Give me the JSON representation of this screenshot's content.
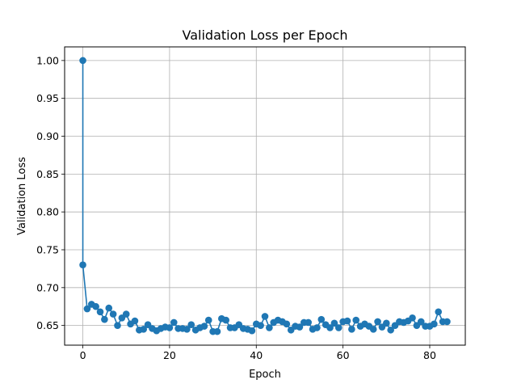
{
  "chart_data": {
    "type": "line",
    "title": "Validation Loss per Epoch",
    "xlabel": "Epoch",
    "ylabel": "Validation Loss",
    "xlim": [
      -4.2,
      88.2
    ],
    "ylim": [
      0.624,
      1.018
    ],
    "xticks": [
      0,
      20,
      40,
      60,
      80
    ],
    "xtick_labels": [
      "0",
      "20",
      "40",
      "60",
      "80"
    ],
    "yticks": [
      0.65,
      0.7,
      0.75,
      0.8,
      0.85,
      0.9,
      0.95,
      1.0
    ],
    "ytick_labels": [
      "0.65",
      "0.70",
      "0.75",
      "0.80",
      "0.85",
      "0.90",
      "0.95",
      "1.00"
    ],
    "grid": true,
    "color": "#1f77b4",
    "series": [
      {
        "x": [
          0,
          0,
          1,
          2,
          3,
          4,
          5,
          6,
          7,
          8,
          9,
          10,
          11,
          12,
          13,
          14,
          15,
          16,
          17,
          18,
          19,
          20,
          21,
          22,
          23,
          24,
          25,
          26,
          27,
          28,
          29,
          30,
          31,
          32,
          33,
          34,
          35,
          36,
          37,
          38,
          39,
          40,
          41,
          42,
          43,
          44,
          45,
          46,
          47,
          48,
          49,
          50,
          51,
          52,
          53,
          54,
          55,
          56,
          57,
          58,
          59,
          60,
          61,
          62,
          63,
          64,
          65,
          66,
          67,
          68,
          69,
          70,
          71,
          72,
          73,
          74,
          75,
          76,
          77,
          78,
          79,
          80,
          81,
          82,
          83,
          84
        ],
        "y": [
          1.0,
          0.73,
          0.672,
          0.678,
          0.675,
          0.668,
          0.658,
          0.673,
          0.665,
          0.65,
          0.66,
          0.665,
          0.652,
          0.656,
          0.644,
          0.645,
          0.651,
          0.646,
          0.643,
          0.646,
          0.648,
          0.647,
          0.654,
          0.646,
          0.646,
          0.645,
          0.651,
          0.644,
          0.647,
          0.649,
          0.657,
          0.642,
          0.642,
          0.659,
          0.657,
          0.647,
          0.647,
          0.651,
          0.646,
          0.645,
          0.643,
          0.652,
          0.65,
          0.662,
          0.647,
          0.654,
          0.657,
          0.655,
          0.652,
          0.644,
          0.649,
          0.648,
          0.654,
          0.654,
          0.645,
          0.647,
          0.658,
          0.651,
          0.647,
          0.653,
          0.647,
          0.655,
          0.656,
          0.645,
          0.657,
          0.649,
          0.652,
          0.649,
          0.645,
          0.655,
          0.648,
          0.653,
          0.644,
          0.65,
          0.655,
          0.654,
          0.656,
          0.66,
          0.65,
          0.655,
          0.649,
          0.649,
          0.652,
          0.668,
          0.655,
          0.655
        ]
      }
    ]
  }
}
